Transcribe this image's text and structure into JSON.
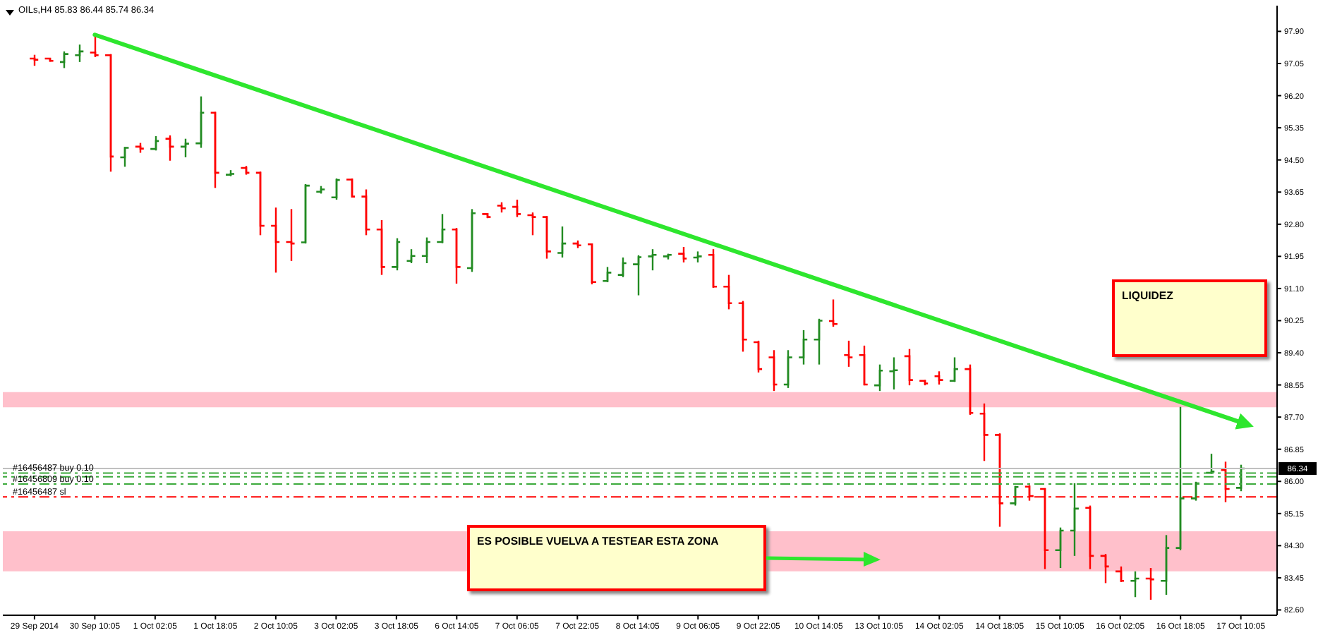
{
  "chart_data": {
    "type": "candlestick",
    "title": "OILs,H4 85.83 86.44 85.74 86.34",
    "categories": [
      "29 Sep 2014",
      null,
      null,
      null,
      "30 Sep 10:05",
      null,
      null,
      null,
      "1 Oct 02:05",
      null,
      null,
      null,
      "1 Oct 18:05",
      null,
      null,
      null,
      "2 Oct 10:05",
      null,
      null,
      null,
      "3 Oct 02:05",
      null,
      null,
      null,
      "3 Oct 18:05",
      null,
      null,
      null,
      "6 Oct 14:05",
      null,
      null,
      null,
      "7 Oct 06:05",
      null,
      null,
      null,
      "7 Oct 22:05",
      null,
      null,
      null,
      "8 Oct 14:05",
      null,
      null,
      null,
      "9 Oct 06:05",
      null,
      null,
      null,
      "9 Oct 22:05",
      null,
      null,
      null,
      "10 Oct 14:05",
      null,
      null,
      null,
      "13 Oct 10:05",
      null,
      null,
      null,
      "14 Oct 02:05",
      null,
      null,
      null,
      "14 Oct 18:05",
      null,
      null,
      null,
      "15 Oct 10:05",
      null,
      null,
      null,
      "16 Oct 02:05",
      null,
      null,
      null,
      "16 Oct 18:05",
      null,
      null,
      null,
      "17 Oct 10:05"
    ],
    "ohlc": [
      [
        97.18,
        97.28,
        96.99,
        97.15
      ],
      [
        97.18,
        97.19,
        97.1,
        97.12
      ],
      [
        97.09,
        97.37,
        96.93,
        97.3
      ],
      [
        97.27,
        97.55,
        97.09,
        97.37
      ],
      [
        97.34,
        97.81,
        97.22,
        97.27
      ],
      [
        97.27,
        97.3,
        94.19,
        94.59
      ],
      [
        94.57,
        94.84,
        94.32,
        94.82
      ],
      [
        94.85,
        94.95,
        94.69,
        94.8
      ],
      [
        94.79,
        95.13,
        94.75,
        95.0
      ],
      [
        95.06,
        95.15,
        94.48,
        94.85
      ],
      [
        94.85,
        95.06,
        94.57,
        94.93
      ],
      [
        94.94,
        96.18,
        94.82,
        95.75
      ],
      [
        95.75,
        95.77,
        93.76,
        94.16
      ],
      [
        94.11,
        94.23,
        94.07,
        94.13
      ],
      [
        94.29,
        94.34,
        94.11,
        94.16
      ],
      [
        94.16,
        94.19,
        92.51,
        92.76
      ],
      [
        92.76,
        93.24,
        91.52,
        92.33
      ],
      [
        92.33,
        93.2,
        91.83,
        92.29
      ],
      [
        92.32,
        93.86,
        92.29,
        93.82
      ],
      [
        93.66,
        93.81,
        93.61,
        93.72
      ],
      [
        93.51,
        94.01,
        93.45,
        93.97
      ],
      [
        93.98,
        94.01,
        93.51,
        93.53
      ],
      [
        93.53,
        93.72,
        92.51,
        92.66
      ],
      [
        92.66,
        92.91,
        91.46,
        91.67
      ],
      [
        91.67,
        92.43,
        91.58,
        92.33
      ],
      [
        91.83,
        92.14,
        91.77,
        91.96
      ],
      [
        91.96,
        92.45,
        91.77,
        92.33
      ],
      [
        92.33,
        93.07,
        92.3,
        92.66
      ],
      [
        92.66,
        92.7,
        91.23,
        91.67
      ],
      [
        91.64,
        93.2,
        91.54,
        93.09
      ],
      [
        93.07,
        93.09,
        92.96,
        92.99
      ],
      [
        93.29,
        93.38,
        93.11,
        93.22
      ],
      [
        93.26,
        93.45,
        92.99,
        93.07
      ],
      [
        93.04,
        93.11,
        92.51,
        92.99
      ],
      [
        92.99,
        93.01,
        91.89,
        92.08
      ],
      [
        92.04,
        92.74,
        91.92,
        92.29
      ],
      [
        92.29,
        92.37,
        92.17,
        92.24
      ],
      [
        92.27,
        92.29,
        91.21,
        91.27
      ],
      [
        91.3,
        91.67,
        91.27,
        91.52
      ],
      [
        91.46,
        91.92,
        91.4,
        91.77
      ],
      [
        91.74,
        91.98,
        90.92,
        91.93
      ],
      [
        91.95,
        92.14,
        91.58,
        91.99
      ],
      [
        91.95,
        92.02,
        91.87,
        91.99
      ],
      [
        92.02,
        92.2,
        91.79,
        91.89
      ],
      [
        91.92,
        92.08,
        91.79,
        91.95
      ],
      [
        91.99,
        92.14,
        91.12,
        91.15
      ],
      [
        91.15,
        91.46,
        90.55,
        90.71
      ],
      [
        90.71,
        90.77,
        89.43,
        89.75
      ],
      [
        89.68,
        89.72,
        88.88,
        88.97
      ],
      [
        89.28,
        89.47,
        88.39,
        88.56
      ],
      [
        88.56,
        89.47,
        88.47,
        89.28
      ],
      [
        89.28,
        90.0,
        89.09,
        89.75
      ],
      [
        89.75,
        90.3,
        89.09,
        90.25
      ],
      [
        90.24,
        90.81,
        90.09,
        90.16
      ],
      [
        89.34,
        89.72,
        89.03,
        89.28
      ],
      [
        89.34,
        89.59,
        88.54,
        88.56
      ],
      [
        88.54,
        89.09,
        88.39,
        88.93
      ],
      [
        88.91,
        89.28,
        88.43,
        88.94
      ],
      [
        89.31,
        89.5,
        88.54,
        88.68
      ],
      [
        88.66,
        88.68,
        88.54,
        88.59
      ],
      [
        88.78,
        88.91,
        88.56,
        88.68
      ],
      [
        88.66,
        89.28,
        88.63,
        88.97
      ],
      [
        88.97,
        89.09,
        87.76,
        87.81
      ],
      [
        87.79,
        88.06,
        86.54,
        87.23
      ],
      [
        87.23,
        87.27,
        84.8,
        85.42
      ],
      [
        85.42,
        85.88,
        85.36,
        85.85
      ],
      [
        85.86,
        85.9,
        85.49,
        85.61
      ],
      [
        85.8,
        85.82,
        83.68,
        84.18
      ],
      [
        84.18,
        84.78,
        83.71,
        84.7
      ],
      [
        84.7,
        85.95,
        84.03,
        85.28
      ],
      [
        85.3,
        85.36,
        83.68,
        84.03
      ],
      [
        84.03,
        84.08,
        83.31,
        83.75
      ],
      [
        83.62,
        83.75,
        83.34,
        83.37
      ],
      [
        83.37,
        83.62,
        82.94,
        83.43
      ],
      [
        83.43,
        83.71,
        82.87,
        83.41
      ],
      [
        83.37,
        84.58,
        83.0,
        84.24
      ],
      [
        84.24,
        87.97,
        84.18,
        85.55
      ],
      [
        85.55,
        85.99,
        85.49,
        85.95
      ],
      [
        86.23,
        86.73,
        86.2,
        86.26
      ],
      [
        86.3,
        86.52,
        85.45,
        85.8
      ],
      [
        85.83,
        86.44,
        85.74,
        86.34
      ]
    ],
    "colors": [
      "#ff0000",
      "#ff0000",
      "#228b22",
      "#228b22",
      "#ff0000",
      "#ff0000",
      "#228b22",
      "#ff0000",
      "#228b22",
      "#ff0000",
      "#228b22",
      "#228b22",
      "#ff0000",
      "#228b22",
      "#ff0000",
      "#ff0000",
      "#ff0000",
      "#ff0000",
      "#228b22",
      "#228b22",
      "#228b22",
      "#ff0000",
      "#ff0000",
      "#ff0000",
      "#228b22",
      "#228b22",
      "#228b22",
      "#228b22",
      "#ff0000",
      "#228b22",
      "#ff0000",
      "#ff0000",
      "#ff0000",
      "#ff0000",
      "#ff0000",
      "#228b22",
      "#ff0000",
      "#ff0000",
      "#228b22",
      "#228b22",
      "#228b22",
      "#228b22",
      "#228b22",
      "#ff0000",
      "#228b22",
      "#ff0000",
      "#ff0000",
      "#ff0000",
      "#ff0000",
      "#ff0000",
      "#228b22",
      "#228b22",
      "#228b22",
      "#ff0000",
      "#ff0000",
      "#ff0000",
      "#228b22",
      "#228b22",
      "#ff0000",
      "#ff0000",
      "#ff0000",
      "#228b22",
      "#ff0000",
      "#ff0000",
      "#ff0000",
      "#228b22",
      "#ff0000",
      "#ff0000",
      "#228b22",
      "#228b22",
      "#ff0000",
      "#ff0000",
      "#ff0000",
      "#228b22",
      "#ff0000",
      "#228b22",
      "#228b22",
      "#228b22",
      "#228b22",
      "#ff0000",
      "#228b22"
    ],
    "series": [
      {
        "type": "line",
        "x": [
          "30 Sep 10:05",
          "17 Oct 10:05"
        ],
        "values": [
          97.81,
          87.56
        ],
        "color": "#2ee62e"
      }
    ],
    "ylim": [
      82.46,
      98.58
    ],
    "yticks": [
      {
        "value": 97.9,
        "label": "97.90"
      },
      97.05,
      {
        "value": 96.2,
        "label": "96.20"
      },
      95.35,
      {
        "value": 94.5,
        "label": "94.50"
      },
      93.65,
      {
        "value": 92.8,
        "label": "92.80"
      },
      91.95,
      {
        "value": 91.1,
        "label": "91.10"
      },
      90.25,
      {
        "value": 89.4,
        "label": "89.40"
      },
      88.55,
      {
        "value": 87.7,
        "label": "87.70"
      },
      86.85,
      {
        "value": 86,
        "label": "86.00"
      },
      85.15,
      {
        "value": 84.3,
        "label": "84.30"
      },
      83.45,
      {
        "value": 82.6,
        "label": "82.60"
      }
    ],
    "bands": [
      {
        "axis": "y",
        "from": 87.96,
        "to": 88.36,
        "color": "#ffc0cb"
      },
      {
        "axis": "y",
        "from": 83.62,
        "to": 84.68,
        "color": "#ffc0cb"
      }
    ],
    "ref_lines": [
      {
        "axis": "y",
        "value": 86.34,
        "label": "86.34",
        "color": "#c0c0c0"
      },
      {
        "axis": "y",
        "value": 86.22,
        "label": "#16456487 buy 0.10",
        "color": "#3caa3c",
        "line_style": "dashed"
      },
      {
        "axis": "y",
        "value": 86.12,
        "color": "#3caa3c",
        "line_style": "dashed"
      },
      {
        "axis": "y",
        "value": 85.93,
        "label": "#16456809 buy 0.10",
        "color": "#3caa3c",
        "line_style": "dashed"
      },
      {
        "axis": "y",
        "value": 85.59,
        "label": "#16456487 sl",
        "color": "#ff0000",
        "line_style": "dashed"
      }
    ],
    "annotations": [
      "LIQUIDEZ",
      "ES POSIBLE VUELVA A TESTEAR ESTA ZONA"
    ]
  }
}
